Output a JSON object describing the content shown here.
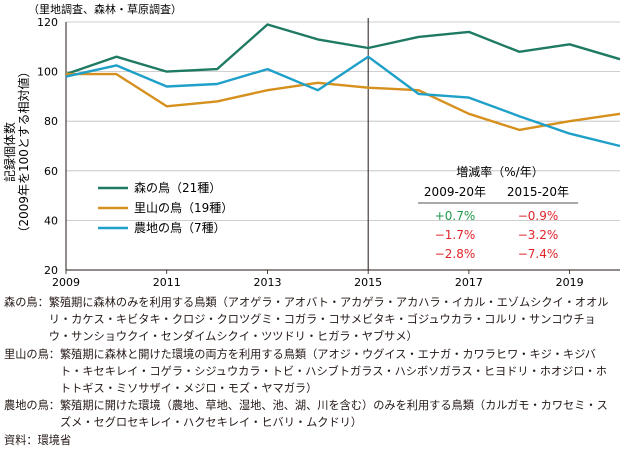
{
  "chart_data": {
    "type": "line",
    "subtitle": "（里地調査、森林・草原調査）",
    "ylabel": "記録個体数",
    "ylabel_sub": "（2009年を100とする相対値）",
    "x": [
      2009,
      2010,
      2011,
      2012,
      2013,
      2014,
      2015,
      2016,
      2017,
      2018,
      2019,
      2020
    ],
    "xlim": [
      2009,
      2020
    ],
    "ylim": [
      20,
      120
    ],
    "xticks": [
      "2009",
      "2011",
      "2013",
      "2015",
      "2017",
      "2019"
    ],
    "yticks": [
      "20",
      "40",
      "60",
      "80",
      "100",
      "120"
    ],
    "reference_year": "2015",
    "grid": true,
    "legend_position": "lower-left",
    "series": [
      {
        "name": "森の鳥（21種）",
        "color": "#1f7a63",
        "values": [
          99,
          106,
          100,
          101,
          119,
          113,
          109.5,
          114,
          116,
          108,
          111,
          105
        ]
      },
      {
        "name": "里山の鳥（19種）",
        "color": "#d6901e",
        "values": [
          99,
          99,
          86,
          88,
          92.5,
          95.5,
          93.5,
          92.5,
          83,
          76.5,
          80,
          83
        ]
      },
      {
        "name": "農地の鳥（7種）",
        "color": "#1fa0c8",
        "values": [
          98,
          102.5,
          94,
          95,
          101,
          92.5,
          106,
          91,
          89.5,
          82,
          75,
          70
        ]
      }
    ],
    "rate_table": {
      "title": "増減率（%/年）",
      "columns": [
        "2009-20年",
        "2015-20年"
      ],
      "rows": [
        [
          "+0.7%",
          "−0.9%"
        ],
        [
          "−1.7%",
          "−3.2%"
        ],
        [
          "−2.8%",
          "−7.4%"
        ]
      ],
      "positive_color": "#1f9a4a",
      "negative_color": "#e0242a"
    }
  },
  "notes": [
    {
      "label": "森の鳥：",
      "text": "繁殖期に森林のみを利用する鳥類（アオゲラ・アオバト・アカゲラ・アカハラ・イカル・エゾムシクイ・オオルリ・カケス・キビタキ・クロジ・クロツグミ・コガラ・コサメビタキ・ゴジュウカラ・コルリ・サンコウチョウ・サンショウクイ・センダイムシクイ・ツツドリ・ヒガラ・ヤブサメ）"
    },
    {
      "label": "里山の鳥：",
      "text": "繁殖期に森林と開けた環境の両方を利用する鳥類（アオジ・ウグイス・エナガ・カワラヒワ・キジ・キジバト・キセキレイ・コゲラ・シジュウカラ・トビ・ハシブトガラス・ハシボソガラス・ヒヨドリ・ホオジロ・ホトトギス・ミソサザイ・メジロ・モズ・ヤマガラ）"
    },
    {
      "label": "農地の鳥：",
      "text": "繁殖期に開けた環境（農地、草地、湿地、池、湖、川を含む）のみを利用する鳥類（カルガモ・カワセミ・スズメ・セグロセキレイ・ハクセキレイ・ヒバリ・ムクドリ）"
    }
  ],
  "source": "資料：環境省"
}
